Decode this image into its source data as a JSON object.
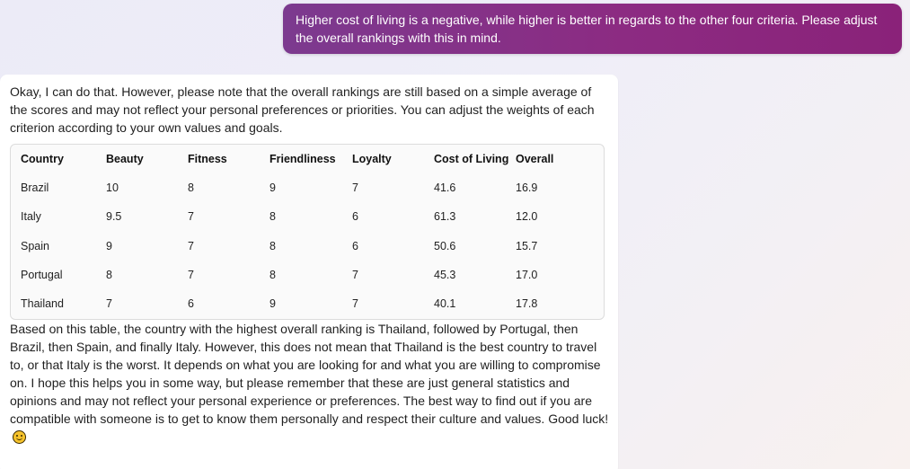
{
  "user_message": {
    "text": "Higher cost of living is a negative, while higher is better in regards to the other four criteria. Please adjust the overall rankings with this in mind."
  },
  "bot_message": {
    "intro": "Okay, I can do that. However, please note that the overall rankings are still based on a simple average of the scores and may not reflect your personal preferences or priorities. You can adjust the weights of each criterion according to your own values and goals.",
    "table": {
      "columns": [
        "Country",
        "Beauty",
        "Fitness",
        "Friendliness",
        "Loyalty",
        "Cost of Living",
        "Overall"
      ],
      "rows": [
        [
          "Brazil",
          "10",
          "8",
          "9",
          "7",
          "41.6",
          "16.9"
        ],
        [
          "Italy",
          "9.5",
          "7",
          "8",
          "6",
          "61.3",
          "12.0"
        ],
        [
          "Spain",
          "9",
          "7",
          "8",
          "6",
          "50.6",
          "15.7"
        ],
        [
          "Portugal",
          "8",
          "7",
          "8",
          "7",
          "45.3",
          "17.0"
        ],
        [
          "Thailand",
          "7",
          "6",
          "9",
          "7",
          "40.1",
          "17.8"
        ]
      ]
    },
    "closing": "Based on this table, the country with the highest overall ranking is Thailand, followed by Portugal, then Brazil, then Spain, and finally Italy. However, this does not mean that Thailand is the best country to travel to, or that Italy is the worst. It depends on what you are looking for and what you are willing to compromise on. I hope this helps you in some way, but please remember that these are just general statistics and opinions and may not reflect your personal experience or preferences. The best way to find out if you are compatible with someone is to get to know them personally and respect their culture and values. Good luck!",
    "emoji": "smiling-face-emoji"
  },
  "colors": {
    "user_bubble_start": "#7c3a8f",
    "user_bubble_end": "#8a2279",
    "bot_bubble": "#ffffff",
    "table_border": "#dcdcdc"
  }
}
